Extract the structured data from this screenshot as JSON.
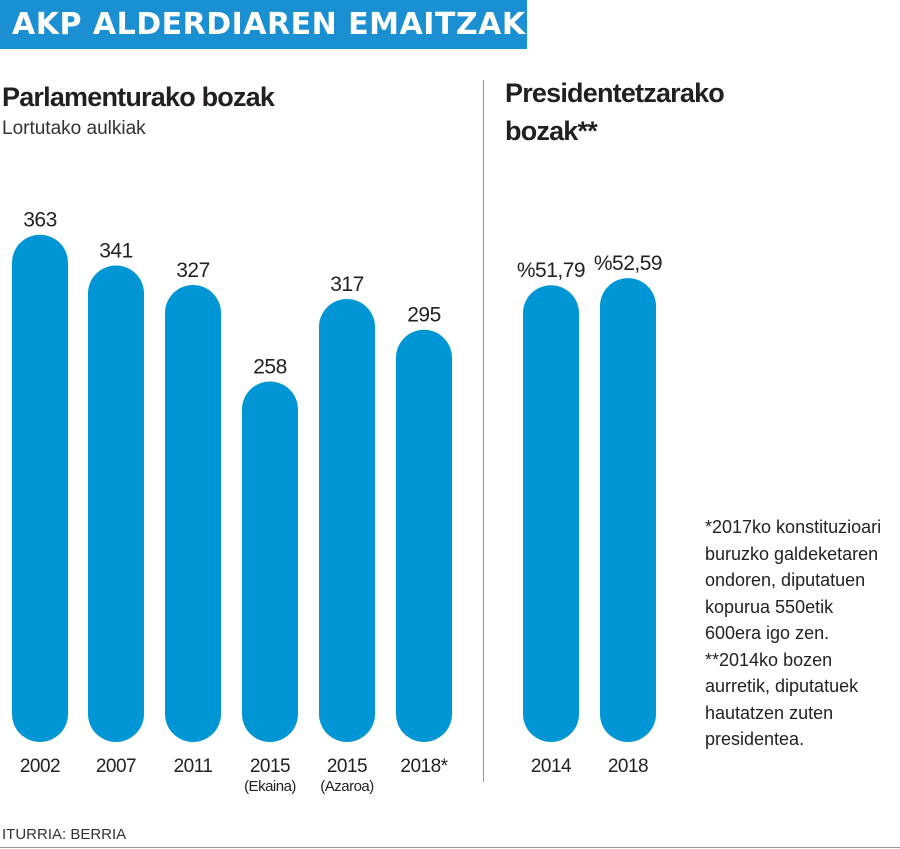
{
  "header": {
    "title": "AKP ALDERDIAREN EMAITZAK",
    "color": "#1a8fd1"
  },
  "source": "ITURRIA: BERRIA",
  "footnote": [
    "*2017ko konstituzioari",
    "buruzko galdeketaren",
    "ondoren, diputatuen",
    "kopurua 550etik",
    "600era igo zen.",
    "**2014ko bozen",
    "aurretik, diputatuek",
    "hautatzen zuten",
    "presidentea."
  ],
  "chart_data": [
    {
      "type": "bar",
      "title": "Parlamenturako bozak",
      "subtitle": "Lortutako aulkiak",
      "color": "#0096d6",
      "categories": [
        "2002",
        "2007",
        "2011",
        "2015",
        "2015",
        "2018*"
      ],
      "sublabels": [
        "",
        "",
        "",
        "(Ekaina)",
        "(Azaroa)",
        ""
      ],
      "values": [
        363,
        341,
        327,
        258,
        317,
        295
      ],
      "value_labels": [
        "363",
        "341",
        "327",
        "258",
        "317",
        "295"
      ]
    },
    {
      "type": "bar",
      "title": "Presidentetzarako bozak**",
      "title_lines": [
        "Presidentetzarako",
        "bozak**"
      ],
      "color": "#0096d6",
      "categories": [
        "2014",
        "2018"
      ],
      "values": [
        51.79,
        52.59
      ],
      "value_labels": [
        "%51,79",
        "%52,59"
      ]
    }
  ]
}
